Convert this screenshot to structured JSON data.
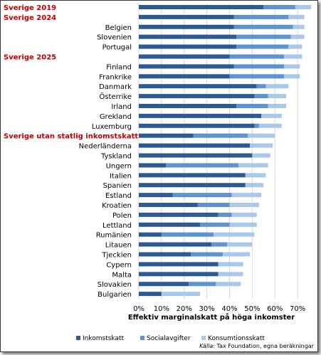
{
  "chart_data": {
    "type": "bar",
    "orientation": "horizontal",
    "stacked": true,
    "xlabel": "Effektiv marginalskatt på höga inkomster",
    "xlim": [
      0,
      75
    ],
    "xticks": [
      0,
      10,
      20,
      30,
      40,
      50,
      60,
      70
    ],
    "tick_labels": [
      "0%",
      "10%",
      "20%",
      "30%",
      "40%",
      "50%",
      "60%",
      "70%"
    ],
    "legend_position": "bottom",
    "categories": [
      "Sverige 2019",
      "Sverige 2024",
      "Belgien",
      "Slovenien",
      "Portugal",
      "Sverige 2025",
      "Finland",
      "Frankrike",
      "Danmark",
      "Österrike",
      "Irland",
      "Grekland",
      "Luxemburg",
      "Sverige utan statlig inkomstskatt",
      "Nederländerna",
      "Tyskland",
      "Ungern",
      "Italien",
      "Spanien",
      "Estland",
      "Kroatien",
      "Polen",
      "Lettland",
      "Rumänien",
      "Litauen",
      "Tjeckien",
      "Cypern",
      "Malta",
      "Slovakien",
      "Bulgarien"
    ],
    "highlighted": [
      "Sverige 2019",
      "Sverige 2024",
      "Sverige 2025",
      "Sverige utan statlig inkomstskatt"
    ],
    "series": [
      {
        "name": "Inkomstskatt",
        "values": [
          55,
          42,
          42,
          43,
          43,
          40,
          42,
          40,
          52,
          51,
          43,
          54,
          51,
          24,
          49,
          50,
          12,
          47,
          47,
          15,
          26,
          35,
          27,
          10,
          32,
          23,
          35,
          35,
          22,
          10
        ]
      },
      {
        "name": "Socialavgifter",
        "values": [
          14,
          24,
          26,
          24,
          23,
          24,
          22,
          24,
          4,
          6,
          14,
          0,
          2,
          24,
          0,
          0,
          32,
          0,
          0,
          26,
          14,
          6,
          13,
          23,
          7,
          14,
          0,
          0,
          12,
          0
        ]
      },
      {
        "name": "Konsumtionsskatt",
        "values": [
          7,
          7,
          5,
          6,
          6,
          8,
          7,
          7,
          10,
          8,
          8,
          9,
          10,
          12,
          10,
          8,
          13,
          9,
          8,
          13,
          13,
          11,
          12,
          18,
          11,
          12,
          11,
          11,
          11,
          17
        ]
      }
    ],
    "colors": [
      "#2e5a93",
      "#5d93cf",
      "#aac8ea"
    ],
    "source_prefix": "Källa:",
    "source_text": " Tax Foundation, egna beräkningar"
  }
}
